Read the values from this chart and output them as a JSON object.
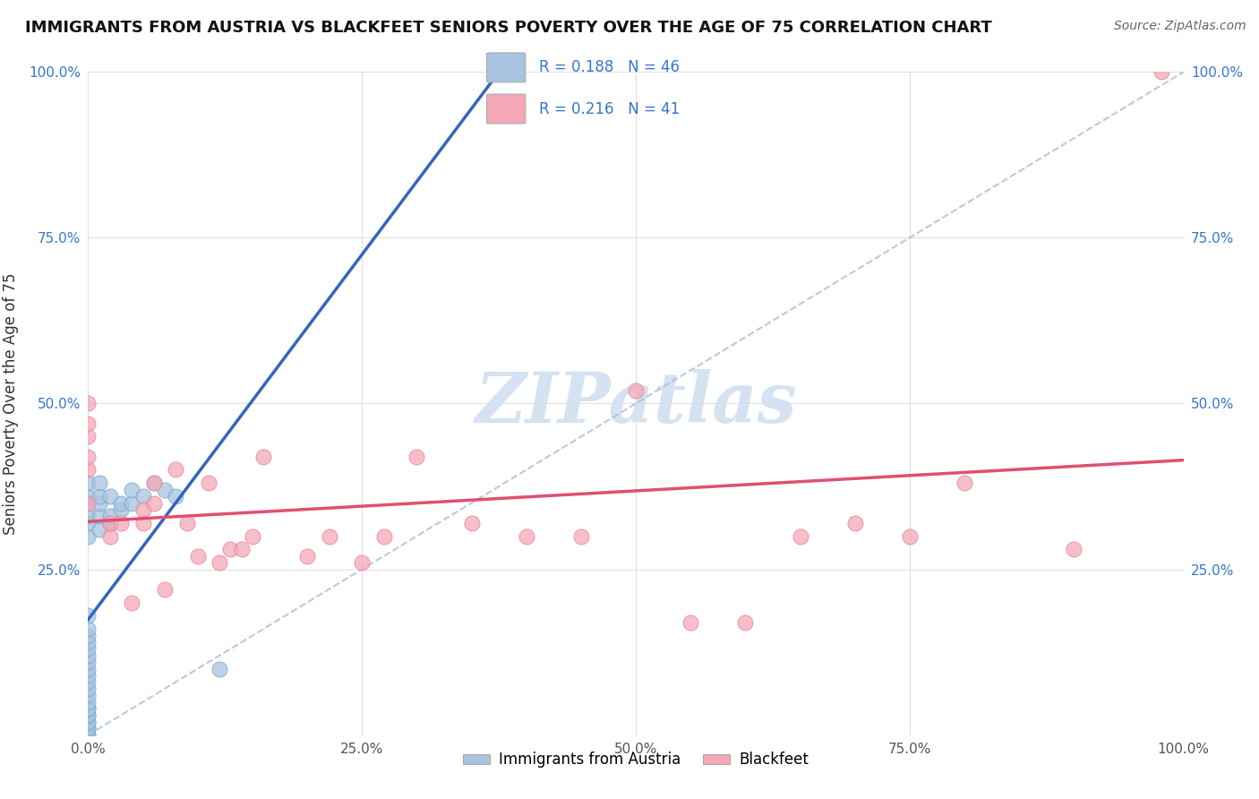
{
  "title": "IMMIGRANTS FROM AUSTRIA VS BLACKFEET SENIORS POVERTY OVER THE AGE OF 75 CORRELATION CHART",
  "source": "Source: ZipAtlas.com",
  "ylabel": "Seniors Poverty Over the Age of 75",
  "xlim": [
    0.0,
    1.0
  ],
  "ylim": [
    0.0,
    1.0
  ],
  "xticks": [
    0.0,
    0.25,
    0.5,
    0.75,
    1.0
  ],
  "xticklabels": [
    "0.0%",
    "25.0%",
    "50.0%",
    "75.0%",
    "100.0%"
  ],
  "yticks": [
    0.0,
    0.25,
    0.5,
    0.75,
    1.0
  ],
  "ytick_labels_left": [
    "",
    "25.0%",
    "50.0%",
    "75.0%",
    "100.0%"
  ],
  "ytick_labels_right": [
    "",
    "25.0%",
    "50.0%",
    "75.0%",
    "100.0%"
  ],
  "austria_R": 0.188,
  "austria_N": 46,
  "blackfeet_R": 0.216,
  "blackfeet_N": 41,
  "austria_color": "#a8c4e0",
  "austria_edge_color": "#7aaad0",
  "blackfeet_color": "#f4a8b8",
  "blackfeet_edge_color": "#e888a0",
  "austria_line_color": "#3366bb",
  "blackfeet_line_color": "#e05070",
  "diag_line_color": "#aabbdd",
  "tick_color_right": "#3377cc",
  "tick_color_left": "#555555",
  "grid_color": "#e0e0e0",
  "watermark_color": "#d0dff0",
  "austria_x": [
    0.0,
    0.0,
    0.0,
    0.0,
    0.0,
    0.0,
    0.0,
    0.0,
    0.0,
    0.0,
    0.0,
    0.0,
    0.0,
    0.0,
    0.0,
    0.0,
    0.0,
    0.0,
    0.0,
    0.0,
    0.0,
    0.0,
    0.0,
    0.0,
    0.0,
    0.0,
    0.0,
    0.0,
    0.0,
    0.01,
    0.01,
    0.01,
    0.01,
    0.01,
    0.02,
    0.02,
    0.02,
    0.03,
    0.03,
    0.04,
    0.04,
    0.05,
    0.06,
    0.07,
    0.08,
    0.12
  ],
  "austria_y": [
    0.0,
    0.0,
    0.01,
    0.01,
    0.02,
    0.02,
    0.03,
    0.03,
    0.04,
    0.04,
    0.05,
    0.06,
    0.07,
    0.08,
    0.09,
    0.1,
    0.11,
    0.12,
    0.13,
    0.14,
    0.15,
    0.16,
    0.18,
    0.3,
    0.32,
    0.33,
    0.35,
    0.36,
    0.38,
    0.31,
    0.33,
    0.35,
    0.36,
    0.38,
    0.32,
    0.33,
    0.36,
    0.34,
    0.35,
    0.35,
    0.37,
    0.36,
    0.38,
    0.37,
    0.36,
    0.1
  ],
  "blackfeet_x": [
    0.0,
    0.0,
    0.0,
    0.0,
    0.0,
    0.0,
    0.02,
    0.02,
    0.03,
    0.04,
    0.05,
    0.05,
    0.06,
    0.06,
    0.07,
    0.08,
    0.09,
    0.1,
    0.11,
    0.12,
    0.13,
    0.14,
    0.15,
    0.16,
    0.2,
    0.22,
    0.25,
    0.27,
    0.3,
    0.35,
    0.4,
    0.45,
    0.5,
    0.55,
    0.6,
    0.65,
    0.7,
    0.75,
    0.8,
    0.9,
    0.98
  ],
  "blackfeet_y": [
    0.35,
    0.4,
    0.42,
    0.45,
    0.47,
    0.5,
    0.3,
    0.32,
    0.32,
    0.2,
    0.32,
    0.34,
    0.35,
    0.38,
    0.22,
    0.4,
    0.32,
    0.27,
    0.38,
    0.26,
    0.28,
    0.28,
    0.3,
    0.42,
    0.27,
    0.3,
    0.26,
    0.3,
    0.42,
    0.32,
    0.3,
    0.3,
    0.52,
    0.17,
    0.17,
    0.3,
    0.32,
    0.3,
    0.38,
    0.28,
    1.0
  ]
}
